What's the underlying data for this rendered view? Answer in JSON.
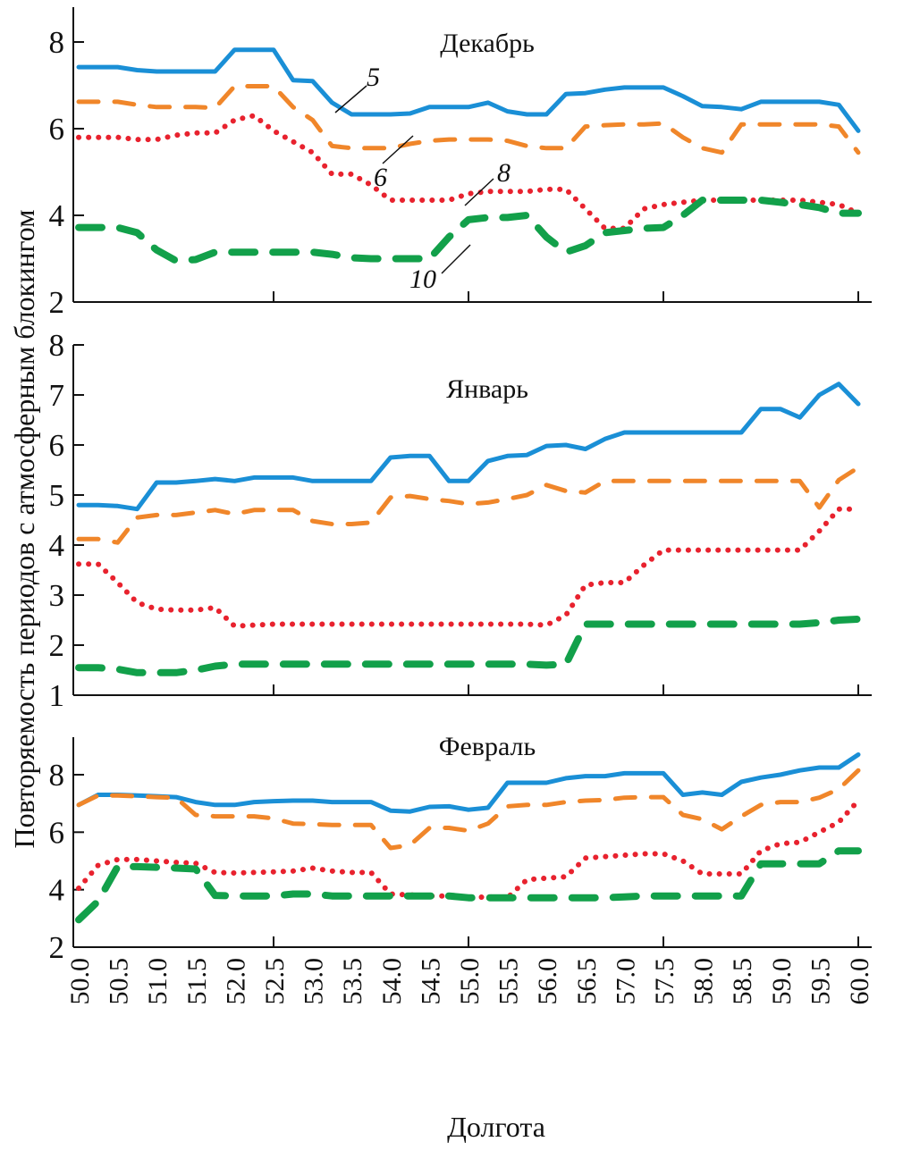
{
  "chart_data": {
    "type": "line",
    "ylabel": "Повторяемость периодов с атмосферным блокингом",
    "xlabel": "Долгота",
    "x": [
      50.0,
      50.25,
      50.5,
      50.75,
      51.0,
      51.25,
      51.5,
      51.75,
      52.0,
      52.25,
      52.5,
      52.75,
      53.0,
      53.25,
      53.5,
      53.75,
      54.0,
      54.25,
      54.5,
      54.75,
      55.0,
      55.25,
      55.5,
      55.75,
      56.0,
      56.25,
      56.5,
      56.75,
      57.0,
      57.25,
      57.5,
      57.75,
      58.0,
      58.25,
      58.5,
      58.75,
      59.0,
      59.25,
      59.5,
      59.75,
      60.0
    ],
    "xticks": [
      "50.0",
      "50.5",
      "51.0",
      "51.5",
      "52.0",
      "52.5",
      "53.0",
      "53.5",
      "54.0",
      "54.5",
      "55.0",
      "55.5",
      "56.0",
      "56.5",
      "57.0",
      "57.5",
      "58.0",
      "58.5",
      "59.0",
      "59.5",
      "60.0"
    ],
    "xlim": [
      50.0,
      60.0
    ],
    "series_styles": [
      {
        "id": "5",
        "color": "#1a8fd6",
        "style": "solid"
      },
      {
        "id": "6",
        "color": "#f0862a",
        "style": "dashed"
      },
      {
        "id": "8",
        "color": "#e8222e",
        "style": "dotted"
      },
      {
        "id": "10",
        "color": "#12a04a",
        "style": "dashed-thick"
      }
    ],
    "panels": [
      {
        "title": "Декабрь",
        "ylim": [
          2,
          8.8
        ],
        "yticks": [
          "2",
          "4",
          "6",
          "8"
        ],
        "annotations": [
          {
            "label": "5",
            "series": "5",
            "at_x": 53.4
          },
          {
            "label": "6",
            "series": "6",
            "at_x": 54.6
          },
          {
            "label": "8",
            "series": "8",
            "at_x": 55.0
          },
          {
            "label": "10",
            "series": "10",
            "at_x": 55.0
          }
        ],
        "series": [
          {
            "name": "5",
            "values": [
              7.42,
              7.42,
              7.42,
              7.35,
              7.32,
              7.32,
              7.32,
              7.32,
              7.82,
              7.82,
              7.82,
              7.12,
              7.1,
              6.6,
              6.33,
              6.33,
              6.33,
              6.35,
              6.5,
              6.5,
              6.5,
              6.6,
              6.4,
              6.33,
              6.33,
              6.8,
              6.82,
              6.9,
              6.95,
              6.95,
              6.95,
              6.75,
              6.52,
              6.5,
              6.45,
              6.62,
              6.62,
              6.62,
              6.62,
              6.55,
              5.95
            ]
          },
          {
            "name": "6",
            "values": [
              6.62,
              6.62,
              6.62,
              6.55,
              6.5,
              6.5,
              6.5,
              6.48,
              6.98,
              6.98,
              6.98,
              6.5,
              6.2,
              5.6,
              5.55,
              5.55,
              5.55,
              5.65,
              5.72,
              5.75,
              5.75,
              5.75,
              5.72,
              5.6,
              5.55,
              5.55,
              6.05,
              6.08,
              6.1,
              6.1,
              6.12,
              5.8,
              5.55,
              5.45,
              6.1,
              6.1,
              6.1,
              6.1,
              6.1,
              6.05,
              5.45
            ]
          },
          {
            "name": "8",
            "values": [
              5.8,
              5.8,
              5.8,
              5.75,
              5.75,
              5.85,
              5.9,
              5.9,
              6.2,
              6.3,
              5.95,
              5.7,
              5.45,
              4.95,
              4.95,
              4.7,
              4.35,
              4.35,
              4.35,
              4.35,
              4.5,
              4.55,
              4.55,
              4.55,
              4.6,
              4.6,
              4.15,
              3.7,
              3.7,
              4.15,
              4.25,
              4.3,
              4.35,
              4.35,
              4.35,
              4.35,
              4.35,
              4.35,
              4.3,
              4.25,
              4.05
            ]
          },
          {
            "name": "10",
            "values": [
              3.72,
              3.72,
              3.72,
              3.6,
              3.2,
              2.95,
              2.98,
              3.15,
              3.15,
              3.15,
              3.15,
              3.15,
              3.15,
              3.1,
              3.02,
              3.0,
              3.0,
              3.0,
              3.0,
              3.5,
              3.9,
              3.95,
              3.95,
              4.0,
              3.5,
              3.15,
              3.3,
              3.6,
              3.65,
              3.7,
              3.72,
              4.0,
              4.35,
              4.35,
              4.35,
              4.35,
              4.3,
              4.25,
              4.18,
              4.05,
              4.05
            ]
          }
        ]
      },
      {
        "title": "Январь",
        "ylim": [
          1,
          8
        ],
        "yticks": [
          "1",
          "2",
          "3",
          "4",
          "5",
          "6",
          "7",
          "8"
        ],
        "series": [
          {
            "name": "5",
            "values": [
              4.8,
              4.8,
              4.78,
              4.72,
              5.25,
              5.25,
              5.28,
              5.32,
              5.28,
              5.35,
              5.35,
              5.35,
              5.28,
              5.28,
              5.28,
              5.28,
              5.75,
              5.78,
              5.78,
              5.28,
              5.28,
              5.68,
              5.78,
              5.8,
              5.98,
              6.0,
              5.92,
              6.12,
              6.25,
              6.25,
              6.25,
              6.25,
              6.25,
              6.25,
              6.25,
              6.72,
              6.72,
              6.55,
              7.0,
              7.22,
              6.82
            ]
          },
          {
            "name": "6",
            "values": [
              4.12,
              4.12,
              4.05,
              4.55,
              4.6,
              4.6,
              4.65,
              4.7,
              4.62,
              4.7,
              4.7,
              4.7,
              4.48,
              4.42,
              4.42,
              4.45,
              4.95,
              4.98,
              4.92,
              4.88,
              4.82,
              4.85,
              4.92,
              5.0,
              5.2,
              5.08,
              5.05,
              5.28,
              5.28,
              5.28,
              5.28,
              5.28,
              5.28,
              5.28,
              5.28,
              5.28,
              5.28,
              5.28,
              4.75,
              5.3,
              5.55
            ]
          },
          {
            "name": "8",
            "values": [
              3.62,
              3.62,
              3.25,
              2.85,
              2.72,
              2.7,
              2.7,
              2.75,
              2.38,
              2.4,
              2.42,
              2.42,
              2.42,
              2.42,
              2.42,
              2.42,
              2.42,
              2.42,
              2.42,
              2.42,
              2.42,
              2.42,
              2.42,
              2.42,
              2.4,
              2.6,
              3.2,
              3.25,
              3.25,
              3.6,
              3.9,
              3.9,
              3.9,
              3.9,
              3.9,
              3.9,
              3.9,
              3.9,
              4.28,
              4.72,
              4.72
            ]
          },
          {
            "name": "10",
            "values": [
              1.55,
              1.55,
              1.52,
              1.45,
              1.45,
              1.45,
              1.5,
              1.58,
              1.62,
              1.62,
              1.62,
              1.62,
              1.62,
              1.62,
              1.62,
              1.62,
              1.62,
              1.62,
              1.62,
              1.62,
              1.62,
              1.62,
              1.62,
              1.62,
              1.6,
              1.62,
              2.42,
              2.42,
              2.42,
              2.42,
              2.42,
              2.42,
              2.42,
              2.42,
              2.42,
              2.42,
              2.42,
              2.42,
              2.45,
              2.5,
              2.52
            ]
          }
        ]
      },
      {
        "title": "Февраль",
        "ylim": [
          2,
          8.8
        ],
        "yticks": [
          "2",
          "4",
          "6",
          "8"
        ],
        "series": [
          {
            "name": "5",
            "values": [
              6.95,
              7.3,
              7.3,
              7.28,
              7.25,
              7.22,
              7.05,
              6.95,
              6.95,
              7.05,
              7.08,
              7.1,
              7.1,
              7.05,
              7.05,
              7.05,
              6.75,
              6.72,
              6.88,
              6.9,
              6.78,
              6.85,
              7.72,
              7.72,
              7.72,
              7.88,
              7.95,
              7.95,
              8.05,
              8.05,
              8.05,
              7.3,
              7.38,
              7.3,
              7.75,
              7.9,
              8.0,
              8.15,
              8.25,
              8.25,
              8.7
            ]
          },
          {
            "name": "6",
            "values": [
              6.95,
              7.28,
              7.28,
              7.25,
              7.22,
              7.2,
              6.6,
              6.55,
              6.55,
              6.55,
              6.48,
              6.3,
              6.28,
              6.25,
              6.25,
              6.25,
              5.45,
              5.55,
              6.15,
              6.15,
              6.05,
              6.3,
              6.9,
              6.95,
              6.95,
              7.05,
              7.1,
              7.12,
              7.2,
              7.22,
              7.22,
              6.6,
              6.45,
              6.1,
              6.55,
              6.95,
              7.05,
              7.05,
              7.2,
              7.5,
              8.15
            ]
          },
          {
            "name": "8",
            "values": [
              4.05,
              4.85,
              5.05,
              5.05,
              5.0,
              4.95,
              4.92,
              4.6,
              4.58,
              4.6,
              4.62,
              4.65,
              4.75,
              4.65,
              4.6,
              4.6,
              3.85,
              3.82,
              3.78,
              3.78,
              3.72,
              3.75,
              3.72,
              4.35,
              4.4,
              4.45,
              5.1,
              5.15,
              5.2,
              5.25,
              5.25,
              5.0,
              4.55,
              4.55,
              4.55,
              5.35,
              5.6,
              5.65,
              6.0,
              6.35,
              7.1
            ]
          },
          {
            "name": "10",
            "values": [
              2.95,
              3.6,
              4.8,
              4.8,
              4.78,
              4.75,
              4.72,
              3.8,
              3.78,
              3.78,
              3.78,
              3.85,
              3.85,
              3.78,
              3.78,
              3.78,
              3.78,
              3.78,
              3.78,
              3.78,
              3.72,
              3.72,
              3.72,
              3.72,
              3.72,
              3.72,
              3.72,
              3.72,
              3.75,
              3.78,
              3.78,
              3.78,
              3.78,
              3.78,
              3.78,
              4.9,
              4.9,
              4.9,
              4.9,
              5.35,
              5.35
            ]
          }
        ]
      }
    ]
  }
}
